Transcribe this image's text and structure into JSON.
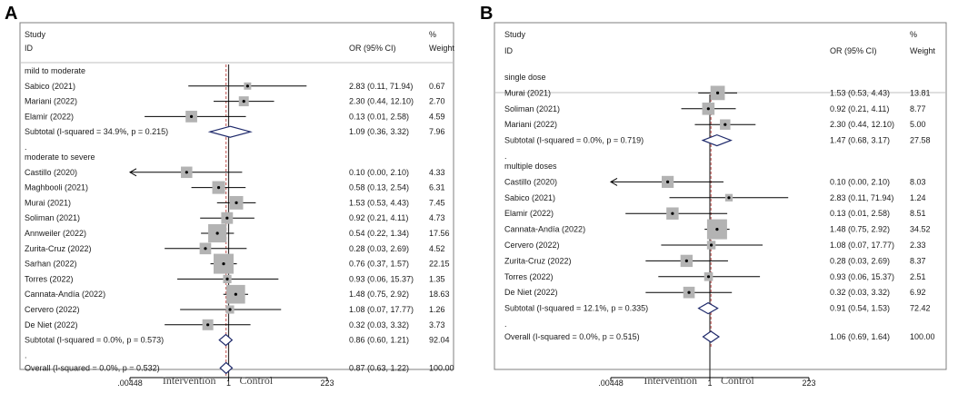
{
  "chart_data": [
    {
      "type": "forest",
      "panel": "A",
      "header": {
        "study": "Study",
        "id": "ID",
        "or_ci": "OR (95% CI)",
        "pct": "%",
        "weight": "Weight"
      },
      "xaxis": {
        "scale": "log",
        "ticks": [
          ".00448",
          "1",
          "223"
        ],
        "left_label": "Intervention",
        "right_label": "Control"
      },
      "groups": [
        {
          "name": "mild to moderate",
          "studies": [
            {
              "id": "Sabico (2021)",
              "or": 2.83,
              "lo": 0.11,
              "hi": 71.94,
              "ci_text": "2.83 (0.11, 71.94)",
              "weight": "0.67"
            },
            {
              "id": "Mariani (2022)",
              "or": 2.3,
              "lo": 0.44,
              "hi": 12.1,
              "ci_text": "2.30 (0.44, 12.10)",
              "weight": "2.70"
            },
            {
              "id": "Elamir  (2022)",
              "or": 0.13,
              "lo": 0.01,
              "hi": 2.58,
              "ci_text": "0.13 (0.01, 2.58)",
              "weight": "4.59"
            }
          ],
          "subtotal": {
            "label": "Subtotal  (I-squared = 34.9%, p = 0.215)",
            "or": 1.09,
            "lo": 0.36,
            "hi": 3.32,
            "ci_text": "1.09 (0.36, 3.32)",
            "weight": "7.96"
          }
        },
        {
          "name": "moderate to severe",
          "studies": [
            {
              "id": "Castillo  (2020)",
              "or": 0.1,
              "lo": 0.0,
              "hi": 2.1,
              "ci_text": "0.10 (0.00, 2.10)",
              "weight": "4.33",
              "arrow_left": true
            },
            {
              "id": "Maghbooli (2021)",
              "or": 0.58,
              "lo": 0.13,
              "hi": 2.54,
              "ci_text": "0.58 (0.13, 2.54)",
              "weight": "6.31"
            },
            {
              "id": "Murai (2021)",
              "or": 1.53,
              "lo": 0.53,
              "hi": 4.43,
              "ci_text": "1.53 (0.53, 4.43)",
              "weight": "7.45"
            },
            {
              "id": "Soliman (2021)",
              "or": 0.92,
              "lo": 0.21,
              "hi": 4.11,
              "ci_text": "0.92 (0.21, 4.11)",
              "weight": "4.73"
            },
            {
              "id": "Annweiler (2022)",
              "or": 0.54,
              "lo": 0.22,
              "hi": 1.34,
              "ci_text": "0.54 (0.22, 1.34)",
              "weight": "17.56"
            },
            {
              "id": "Zurita-Cruz (2022)",
              "or": 0.28,
              "lo": 0.03,
              "hi": 2.69,
              "ci_text": "0.28 (0.03, 2.69)",
              "weight": "4.52"
            },
            {
              "id": "Sarhan  (2022)",
              "or": 0.76,
              "lo": 0.37,
              "hi": 1.57,
              "ci_text": "0.76 (0.37, 1.57)",
              "weight": "22.15"
            },
            {
              "id": "Torres  (2022)",
              "or": 0.93,
              "lo": 0.06,
              "hi": 15.37,
              "ci_text": "0.93 (0.06, 15.37)",
              "weight": "1.35"
            },
            {
              "id": "Cannata-Andía (2022)",
              "or": 1.48,
              "lo": 0.75,
              "hi": 2.92,
              "ci_text": "1.48 (0.75, 2.92)",
              "weight": "18.63"
            },
            {
              "id": "Cervero (2022)",
              "or": 1.08,
              "lo": 0.07,
              "hi": 17.77,
              "ci_text": "1.08 (0.07, 17.77)",
              "weight": "1.26"
            },
            {
              "id": "De Niet (2022)",
              "or": 0.32,
              "lo": 0.03,
              "hi": 3.32,
              "ci_text": "0.32 (0.03, 3.32)",
              "weight": "3.73"
            }
          ],
          "subtotal": {
            "label": "Subtotal  (I-squared = 0.0%, p = 0.573)",
            "or": 0.86,
            "lo": 0.6,
            "hi": 1.21,
            "ci_text": "0.86 (0.60, 1.21)",
            "weight": "92.04"
          }
        }
      ],
      "overall": {
        "label": "Overall  (I-squared = 0.0%, p = 0.532)",
        "or": 0.87,
        "lo": 0.63,
        "hi": 1.22,
        "ci_text": "0.87 (0.63, 1.22)",
        "weight": "100.00"
      }
    },
    {
      "type": "forest",
      "panel": "B",
      "header": {
        "study": "Study",
        "id": "ID",
        "or_ci": "OR (95% CI)",
        "pct": "%",
        "weight": "Weight"
      },
      "xaxis": {
        "scale": "log",
        "ticks": [
          ".00448",
          "1",
          "223"
        ],
        "left_label": "Intervention",
        "right_label": "Control"
      },
      "groups": [
        {
          "name": "single dose",
          "studies": [
            {
              "id": "Murai (2021)",
              "or": 1.53,
              "lo": 0.53,
              "hi": 4.43,
              "ci_text": "1.53 (0.53, 4.43)",
              "weight": "13.81"
            },
            {
              "id": "Soliman (2021)",
              "or": 0.92,
              "lo": 0.21,
              "hi": 4.11,
              "ci_text": "0.92 (0.21, 4.11)",
              "weight": "8.77"
            },
            {
              "id": "Mariani (2022)",
              "or": 2.3,
              "lo": 0.44,
              "hi": 12.1,
              "ci_text": "2.30 (0.44, 12.10)",
              "weight": "5.00"
            }
          ],
          "subtotal": {
            "label": "Subtotal  (I-squared = 0.0%, p = 0.719)",
            "or": 1.47,
            "lo": 0.68,
            "hi": 3.17,
            "ci_text": "1.47 (0.68, 3.17)",
            "weight": "27.58"
          }
        },
        {
          "name": "multiple doses",
          "studies": [
            {
              "id": "Castillo  (2020)",
              "or": 0.1,
              "lo": 0.0,
              "hi": 2.1,
              "ci_text": "0.10 (0.00, 2.10)",
              "weight": "8.03",
              "arrow_left": true
            },
            {
              "id": "Sabico (2021)",
              "or": 2.83,
              "lo": 0.11,
              "hi": 71.94,
              "ci_text": "2.83 (0.11, 71.94)",
              "weight": "1.24"
            },
            {
              "id": "Elamir  (2022)",
              "or": 0.13,
              "lo": 0.01,
              "hi": 2.58,
              "ci_text": "0.13 (0.01, 2.58)",
              "weight": "8.51"
            },
            {
              "id": "Cannata-Andía (2022)",
              "or": 1.48,
              "lo": 0.75,
              "hi": 2.92,
              "ci_text": "1.48 (0.75, 2.92)",
              "weight": "34.52"
            },
            {
              "id": "Cervero (2022)",
              "or": 1.08,
              "lo": 0.07,
              "hi": 17.77,
              "ci_text": "1.08 (0.07, 17.77)",
              "weight": "2.33"
            },
            {
              "id": "Zurita-Cruz (2022)",
              "or": 0.28,
              "lo": 0.03,
              "hi": 2.69,
              "ci_text": "0.28 (0.03, 2.69)",
              "weight": "8.37"
            },
            {
              "id": "Torres  (2022)",
              "or": 0.93,
              "lo": 0.06,
              "hi": 15.37,
              "ci_text": "0.93 (0.06, 15.37)",
              "weight": "2.51"
            },
            {
              "id": "De Niet (2022)",
              "or": 0.32,
              "lo": 0.03,
              "hi": 3.32,
              "ci_text": "0.32 (0.03, 3.32)",
              "weight": "6.92"
            }
          ],
          "subtotal": {
            "label": "Subtotal  (I-squared = 12.1%, p = 0.335)",
            "or": 0.91,
            "lo": 0.54,
            "hi": 1.53,
            "ci_text": "0.91 (0.54, 1.53)",
            "weight": "72.42"
          }
        }
      ],
      "overall": {
        "label": "Overall  (I-squared = 0.0%, p = 0.515)",
        "or": 1.06,
        "lo": 0.69,
        "hi": 1.64,
        "ci_text": "1.06 (0.69, 1.64)",
        "weight": "100.00"
      }
    }
  ],
  "colors": {
    "box": "#b3b3b3",
    "diamond": "#1f2a6b",
    "ref_line": "#333333",
    "pooled_line": "#c0504d",
    "frame": "#7f7f7f"
  }
}
